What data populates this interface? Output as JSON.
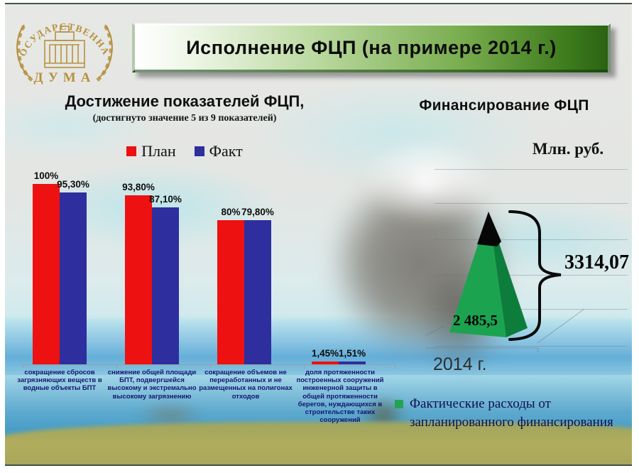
{
  "slide_title": "Исполнение ФЦП (на примере 2014 г.)",
  "logo": {
    "name": "state-duma-emblem",
    "arc_text": "ГОСУДАРСТВЕННАЯ",
    "bottom_text": "ДУМА",
    "color": "#b6913e"
  },
  "chart_data": [
    {
      "type": "bar",
      "title": "Достижение показателей ФЦП,",
      "subtitle": "(достигнуто значение 5 из 9 показателей)",
      "legend_position": "top",
      "grid": false,
      "ylim": [
        0,
        100
      ],
      "categories": [
        "сокращение сбросов загрязняющих веществ в водные объекты БПТ",
        "снижение общей площади БПТ, подвергшейся высокому и экстремально высокому загрязнению",
        "сокращение объемов не переработанных и не размещенных на полигонах отходов",
        "доля протяженности построенных сооружений инженерной защиты в общей протяженности берегов, нуждающихся в строительстве таких сооружений"
      ],
      "series": [
        {
          "name": "План",
          "color": "#ee1111",
          "values": [
            100,
            93.8,
            80,
            1.45
          ],
          "labels": [
            "100%",
            "93,80%",
            "80%",
            "1,45%"
          ]
        },
        {
          "name": "Факт",
          "color": "#2e2e9e",
          "values": [
            95.3,
            87.1,
            79.8,
            1.51
          ],
          "labels": [
            "95,30%",
            "87,10%",
            "79,80%",
            "1,51%"
          ]
        }
      ]
    },
    {
      "type": "pyramid",
      "title": "Финансирование ФЦП",
      "unit_label": "Млн. руб.",
      "x_label": "2014 г.",
      "total": 3314.07,
      "total_label": "3314,07",
      "actual": 2485.5,
      "actual_label": "2 485,5",
      "legend": "Фактические расходы от запланированного финансирования",
      "colors": {
        "actual_front": "#1ca350",
        "actual_side": "#0d7d3c",
        "remainder": "#070707",
        "legend_swatch": "#23a455"
      }
    }
  ]
}
